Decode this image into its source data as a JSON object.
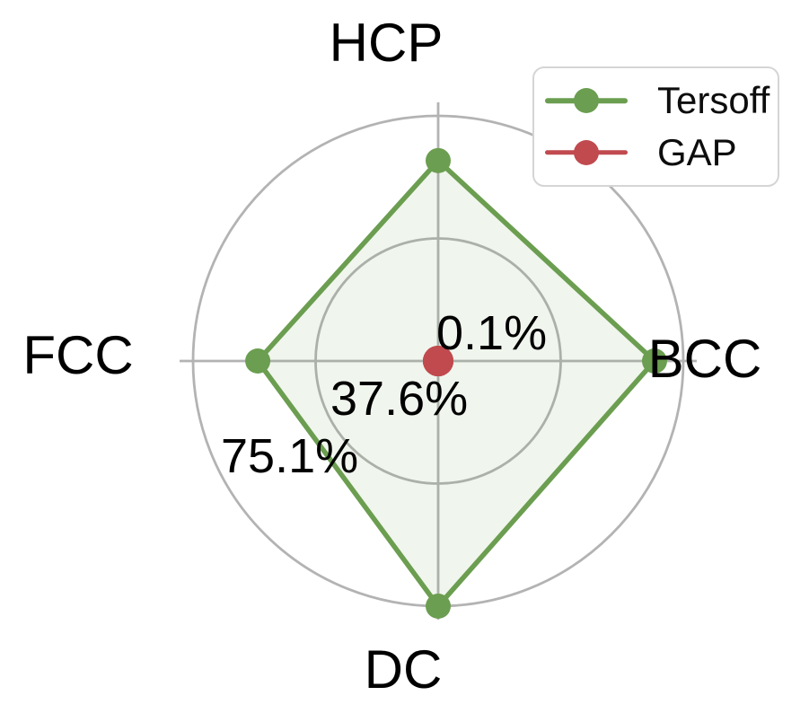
{
  "chart_data": {
    "type": "radar",
    "title": "",
    "categories": [
      "HCP",
      "BCC",
      "DC",
      "FCC"
    ],
    "angles_deg": [
      90,
      0,
      270,
      180
    ],
    "series": [
      {
        "name": "Tersoff",
        "color": "#6b9e50",
        "fill_opacity": 0.1,
        "values": [
          61.4,
          66.3,
          75.1,
          55.3
        ]
      },
      {
        "name": "GAP",
        "color": "#c04a4e",
        "fill_opacity": 0,
        "values": [
          0.1,
          0.1,
          0.1,
          0.1
        ]
      }
    ],
    "radial_axis": {
      "min": 0.1,
      "max": 75.1,
      "tick_values": [
        0.1,
        37.6,
        75.1
      ],
      "tick_labels": [
        "0.1%",
        "37.6%",
        "75.1%"
      ],
      "unit": "%"
    },
    "grid": true,
    "grid_color": "#b3b3b3",
    "legend_position": "upper right"
  }
}
